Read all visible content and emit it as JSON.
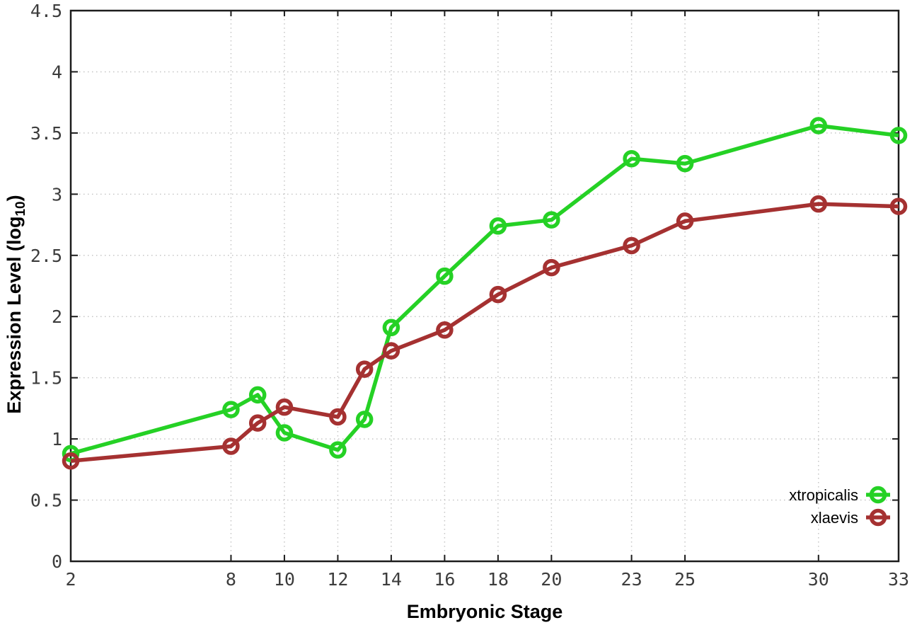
{
  "chart_data": {
    "type": "line",
    "title": "",
    "xlabel": "Embryonic Stage",
    "ylabel": "Expression Level (log10)",
    "ylabel_parts": {
      "main": "Expression Level (log",
      "sub": "10",
      "end": ")"
    },
    "x": [
      2,
      8,
      9,
      10,
      12,
      13,
      14,
      16,
      18,
      20,
      23,
      25,
      30,
      33
    ],
    "series": [
      {
        "name": "xtropicalis",
        "color": "#25d125",
        "values": [
          0.88,
          1.24,
          1.36,
          1.05,
          0.91,
          1.16,
          1.91,
          2.33,
          2.74,
          2.79,
          3.29,
          3.25,
          3.56,
          3.48
        ]
      },
      {
        "name": "xlaevis",
        "color": "#a53131",
        "values": [
          0.82,
          0.94,
          1.13,
          1.26,
          1.18,
          1.57,
          1.72,
          1.89,
          2.18,
          2.4,
          2.58,
          2.78,
          2.92,
          2.9
        ]
      }
    ],
    "xticks": [
      2,
      8,
      10,
      12,
      14,
      16,
      18,
      20,
      23,
      25,
      30,
      33
    ],
    "yticks": [
      0,
      0.5,
      1,
      1.5,
      2,
      2.5,
      3,
      3.5,
      4,
      4.5
    ],
    "xlim": [
      2,
      33
    ],
    "ylim": [
      0,
      4.5
    ],
    "grid": true,
    "legend_position": "inside-bottom-right",
    "style": {
      "axis_color": "#1c1c1c",
      "grid_color": "#c6c6c6",
      "tick_label_color": "#3c3c3c",
      "legend_text_color": "#000000",
      "background": "#ffffff"
    }
  }
}
